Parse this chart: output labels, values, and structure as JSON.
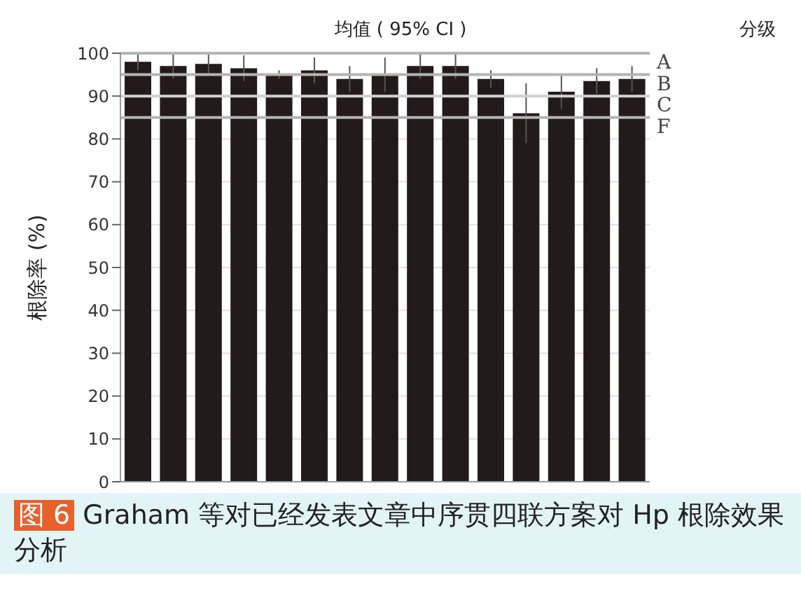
{
  "chart_data": {
    "type": "bar",
    "title": "均值 ( 95% CI )",
    "ylabel": "根除率 (%)",
    "categories": [
      null,
      null,
      null,
      null,
      null,
      null,
      null,
      null,
      null,
      null,
      null,
      null,
      null,
      null,
      null
    ],
    "values": [
      98,
      97,
      97.5,
      96.5,
      95,
      96,
      94,
      95,
      97,
      97,
      94,
      86,
      91,
      93.5,
      94
    ],
    "errors": [
      2,
      3,
      2.5,
      3,
      1,
      3,
      3,
      4,
      3,
      3,
      2,
      7,
      4,
      3,
      3
    ],
    "color": "#231a1a",
    "ylim": [
      0,
      100
    ],
    "yticks": [
      0,
      10,
      20,
      30,
      40,
      50,
      60,
      70,
      80,
      90,
      100
    ],
    "grid": "y",
    "ref_lines": [
      {
        "axis": "y",
        "value": 100,
        "label": "A",
        "color": "#b4b4b4"
      },
      {
        "axis": "y",
        "value": 95,
        "label": "B",
        "color": "#b4b4b4"
      },
      {
        "axis": "y",
        "value": 90,
        "label": "C",
        "color": "#d0d0d0"
      },
      {
        "axis": "y",
        "value": 85,
        "label": "F",
        "color": "#b4b4b4"
      }
    ],
    "annotations": [
      "分级",
      "图 6 Graham 等对已经发表文章中序贯四联方案对 Hp 根除效果分析"
    ]
  }
}
